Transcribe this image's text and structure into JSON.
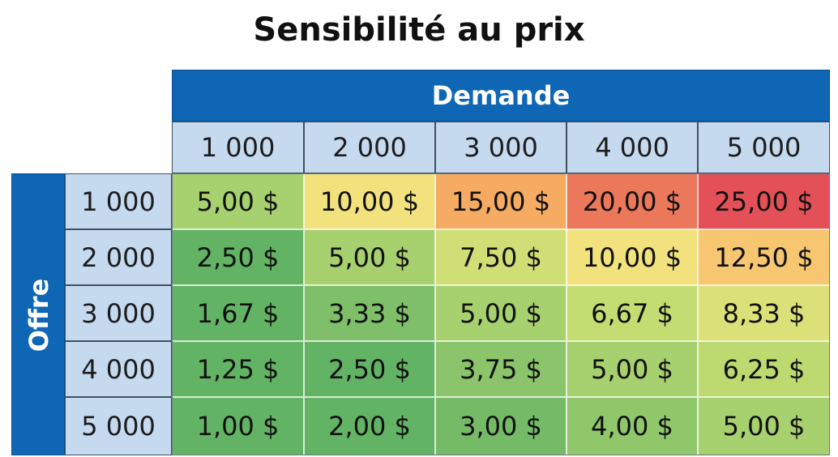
{
  "title": "Sensibilité au prix",
  "chart_data": {
    "type": "heatmap",
    "title": "Sensibilité au prix",
    "x_header": "Demande",
    "y_header": "Offre",
    "x_categories": [
      "1 000",
      "2 000",
      "3 000",
      "4 000",
      "5 000"
    ],
    "y_categories": [
      "1 000",
      "2 000",
      "3 000",
      "4 000",
      "5 000"
    ],
    "values": [
      [
        5.0,
        10.0,
        15.0,
        20.0,
        25.0
      ],
      [
        2.5,
        5.0,
        7.5,
        10.0,
        12.5
      ],
      [
        1.67,
        3.33,
        5.0,
        6.67,
        8.33
      ],
      [
        1.25,
        2.5,
        3.75,
        5.0,
        6.25
      ],
      [
        1.0,
        2.0,
        3.0,
        4.0,
        5.0
      ]
    ],
    "labels": [
      [
        "5,00 $",
        "10,00 $",
        "15,00 $",
        "20,00 $",
        "25,00 $"
      ],
      [
        "2,50 $",
        "5,00 $",
        "7,50 $",
        "10,00 $",
        "12,50 $"
      ],
      [
        "1,67 $",
        "3,33 $",
        "5,00 $",
        "6,67 $",
        "8,33 $"
      ],
      [
        "1,25 $",
        "2,50 $",
        "3,75 $",
        "5,00 $",
        "6,25 $"
      ],
      [
        "1,00 $",
        "2,00 $",
        "3,00 $",
        "4,00 $",
        "5,00 $"
      ]
    ],
    "colors": {
      "header_band": "#0f66b5",
      "axis_cell": "#c5d9ef",
      "scale_low": "#63b365",
      "scale_mid": "#f6e27e",
      "scale_high": "#e35058"
    }
  }
}
